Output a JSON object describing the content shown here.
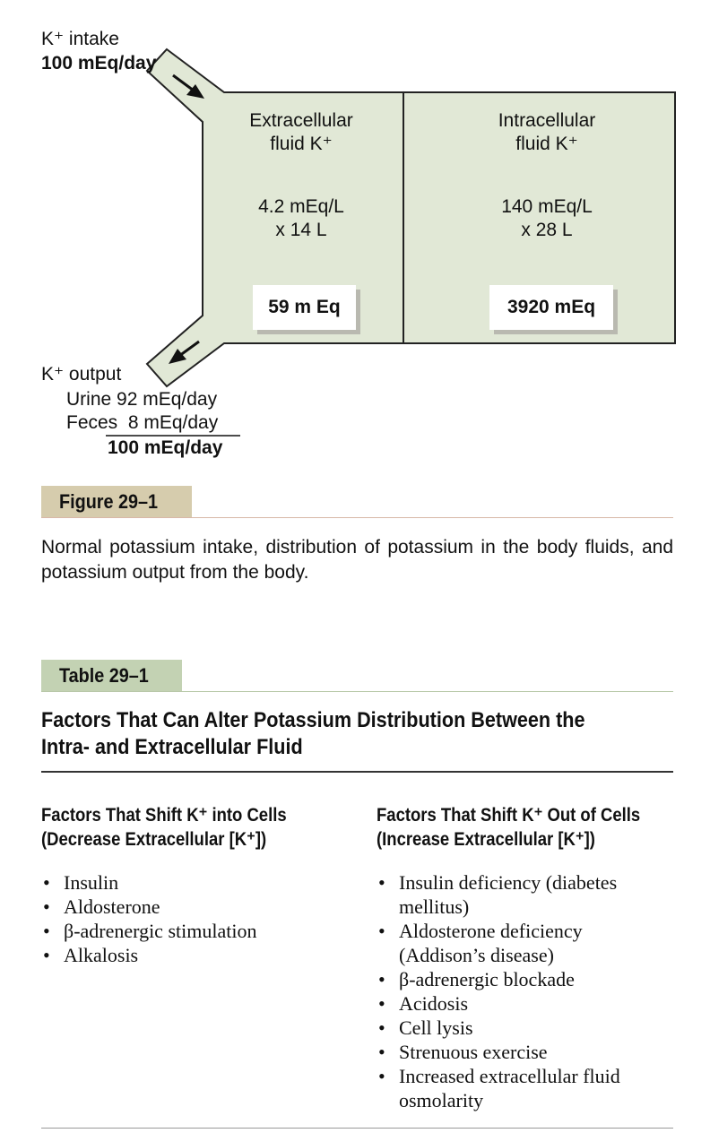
{
  "diagram": {
    "intake": {
      "label": "K⁺ intake",
      "value": "100 mEq/day"
    },
    "extracellular": {
      "title_line1": "Extracellular",
      "title_line2": "fluid K⁺",
      "conc_line1": "4.2 mEq/L",
      "conc_line2": "x 14 L",
      "total": "59 m Eq"
    },
    "intracellular": {
      "title_line1": "Intracellular",
      "title_line2": "fluid K⁺",
      "conc_line1": "140 mEq/L",
      "conc_line2": "x 28 L",
      "total": "3920 mEq"
    },
    "output": {
      "label": "K⁺ output",
      "urine": "Urine 92 mEq/day",
      "feces": "Feces  8 mEq/day",
      "total": "100 mEq/day"
    },
    "colors": {
      "compartment_fill": "#e1e8d6",
      "caption_band": "#d6ccad",
      "table_band": "#c3d2b3"
    }
  },
  "figure": {
    "label": "Figure 29–1",
    "caption": "Normal potassium intake, distribution of potassium in the body fluids, and potassium output from the body."
  },
  "table": {
    "label": "Table 29–1",
    "title_line1": "Factors That Can Alter Potassium Distribution Between the",
    "title_line2": "Intra- and Extracellular Fluid",
    "left": {
      "heading_line1": "Factors That Shift K⁺ into Cells",
      "heading_line2": "(Decrease Extracellular [K⁺])",
      "items": [
        "Insulin",
        "Aldosterone",
        "β-adrenergic stimulation",
        "Alkalosis"
      ]
    },
    "right": {
      "heading_line1": "Factors That Shift K⁺ Out of Cells",
      "heading_line2": "(Increase Extracellular [K⁺])",
      "items": [
        "Insulin deficiency (diabetes mellitus)",
        "Aldosterone deficiency (Addison’s disease)",
        "β-adrenergic blockade",
        "Acidosis",
        "Cell lysis",
        "Strenuous exercise",
        "Increased extracellular fluid osmolarity"
      ]
    }
  }
}
